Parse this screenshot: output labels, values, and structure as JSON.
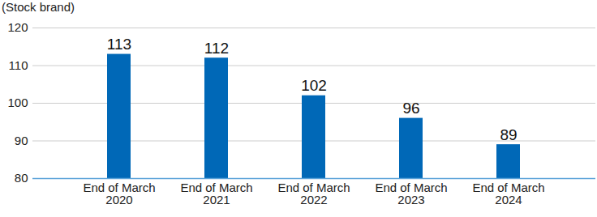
{
  "chart_data": {
    "type": "bar",
    "y_label": "(Stock brand)",
    "categories": [
      "End of March\n2020",
      "End of March\n2021",
      "End of March\n2022",
      "End of March\n2023",
      "End of March\n2024"
    ],
    "values": [
      113,
      112,
      102,
      96,
      89
    ],
    "color": "#0068b7",
    "ylim": [
      80,
      120
    ],
    "yticks": [
      80,
      90,
      100,
      110,
      120
    ],
    "grid": true,
    "data_labels": true
  }
}
